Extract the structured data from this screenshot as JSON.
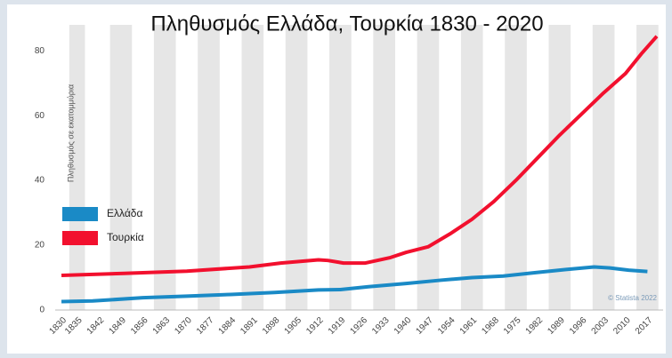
{
  "chart_data": {
    "type": "line",
    "title": "Πληθυσμός Ελλάδα, Τουρκία 1830 - 2020",
    "y_label": "Πληθυσμός σε εκατομμύρια",
    "credit": "© Statista 2022",
    "xlim": [
      1828,
      2022
    ],
    "xticks": [
      1830,
      1835,
      1842,
      1849,
      1856,
      1863,
      1870,
      1877,
      1884,
      1891,
      1898,
      1905,
      1912,
      1919,
      1926,
      1933,
      1940,
      1947,
      1954,
      1961,
      1968,
      1975,
      1982,
      1989,
      1996,
      2003,
      2010,
      2017
    ],
    "ylim": [
      0,
      88
    ],
    "yticks": [
      0,
      20,
      40,
      60,
      80
    ],
    "grid": false,
    "legend": "left",
    "series": [
      {
        "name": "Ελλάδα",
        "color": "#1a8ac6",
        "x": [
          1830,
          1840,
          1856,
          1870,
          1884,
          1898,
          1912,
          1919,
          1928,
          1940,
          1951,
          1961,
          1971,
          1981,
          1991,
          2000,
          2005,
          2011,
          2017
        ],
        "values": [
          2.6,
          2.8,
          3.8,
          4.3,
          4.8,
          5.4,
          6.2,
          6.3,
          7.2,
          8.2,
          9.2,
          10,
          10.5,
          11.5,
          12.5,
          13.3,
          13,
          12.3,
          11.9
        ]
      },
      {
        "name": "Τουρκία",
        "color": "#f2102e",
        "x": [
          1830,
          1850,
          1870,
          1890,
          1900,
          1912,
          1915,
          1920,
          1927,
          1935,
          1940,
          1947,
          1954,
          1961,
          1968,
          1975,
          1982,
          1989,
          1996,
          2003,
          2010,
          2015,
          2020
        ],
        "values": [
          10.7,
          11.3,
          12,
          13.3,
          14.5,
          15.5,
          15.3,
          14.5,
          14.5,
          16.2,
          17.8,
          19.5,
          23.5,
          28,
          33.5,
          40,
          47,
          54,
          60.5,
          67,
          73,
          79,
          84.5
        ]
      }
    ]
  }
}
